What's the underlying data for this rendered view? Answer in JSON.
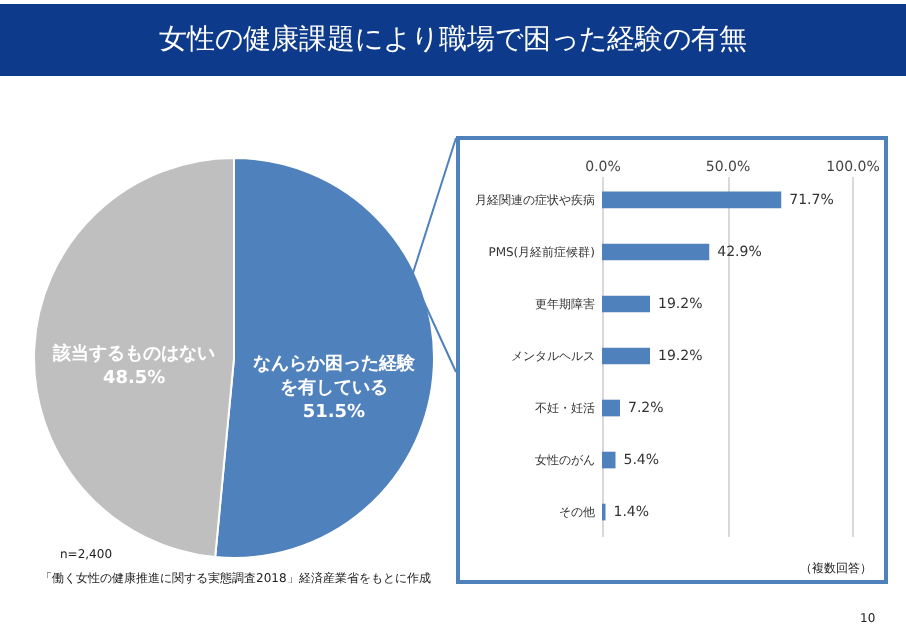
{
  "chart_data": [
    {
      "type": "pie",
      "title": "女性の健康課題により職場で困った経験の有無",
      "categories": [
        "なんらか困った経験を有している",
        "該当するものはない"
      ],
      "values": [
        51.5,
        48.5
      ],
      "colors": [
        "#4f81bd",
        "#bfbfbf"
      ],
      "value_labels": [
        "51.5%",
        "48.5%"
      ],
      "legend": false,
      "annotations": [
        "n=2,400",
        "「働く女性の健康推進に関する実態調査2018」経済産業省をもとに作成",
        "10"
      ]
    },
    {
      "type": "bar",
      "orientation": "horizontal",
      "categories": [
        "月経関連の症状や疾病",
        "PMS(月経前症候群)",
        "更年期障害",
        "メンタルヘルス",
        "不妊・妊活",
        "女性のがん",
        "その他"
      ],
      "values": [
        71.7,
        42.9,
        19.2,
        19.2,
        7.2,
        5.4,
        1.4
      ],
      "color": "#4f81bd",
      "value_labels": [
        "71.7%",
        "42.9%",
        "19.2%",
        "19.2%",
        "7.2%",
        "5.4%",
        "1.4%"
      ],
      "xlim": [
        0,
        100
      ],
      "xticks": [
        {
          "value": 0,
          "label": "0.0%"
        },
        {
          "value": 50,
          "label": "50.0%"
        },
        {
          "value": 100,
          "label": "100.0%"
        }
      ],
      "grid": "x",
      "annotations": [
        "（複数回答）"
      ]
    }
  ]
}
